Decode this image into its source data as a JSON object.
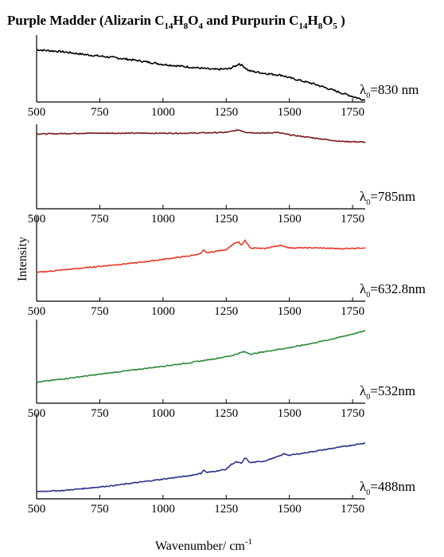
{
  "title_parts": {
    "main": "Purple Madder (Alizarin C",
    "s1": "14",
    "t1": "H",
    "s2": "8",
    "t2": "O",
    "s3": "4",
    "mid": " and Purpurin C",
    "s4": "14",
    "t4": "H",
    "s5": "8",
    "t5": "O",
    "s6": "5",
    "end": " )"
  },
  "chart_data": {
    "type": "line",
    "title": "Purple Madder (Alizarin C14H8O4 and Purpurin C14H8O5 )",
    "xlabel": "Wavenumber/ cm-1",
    "ylabel": "Intensity",
    "xlim": [
      500,
      1800
    ],
    "xticks": [
      "500",
      "750",
      "1000",
      "1250",
      "1500",
      "1750"
    ],
    "grid": false,
    "panels": [
      {
        "label_prefix": "λ",
        "label_sub": "0",
        "label_value": "=830 nm",
        "color": "#000000",
        "ylim": [
          0,
          1
        ],
        "points": [
          [
            500,
            0.82
          ],
          [
            600,
            0.79
          ],
          [
            700,
            0.74
          ],
          [
            800,
            0.7
          ],
          [
            900,
            0.65
          ],
          [
            1000,
            0.59
          ],
          [
            1100,
            0.55
          ],
          [
            1200,
            0.51
          ],
          [
            1260,
            0.52
          ],
          [
            1290,
            0.57
          ],
          [
            1300,
            0.6
          ],
          [
            1315,
            0.57
          ],
          [
            1340,
            0.49
          ],
          [
            1400,
            0.45
          ],
          [
            1470,
            0.42
          ],
          [
            1500,
            0.38
          ],
          [
            1600,
            0.28
          ],
          [
            1700,
            0.15
          ],
          [
            1780,
            0.05
          ],
          [
            1800,
            0.03
          ]
        ]
      },
      {
        "label_prefix": "λ",
        "label_sub": "0",
        "label_value": "=785nm",
        "color": "#7b1a1e",
        "ylim": [
          0,
          1
        ],
        "points": [
          [
            500,
            0.92
          ],
          [
            700,
            0.93
          ],
          [
            900,
            0.93
          ],
          [
            1100,
            0.93
          ],
          [
            1250,
            0.94
          ],
          [
            1300,
            0.97
          ],
          [
            1330,
            0.94
          ],
          [
            1400,
            0.93
          ],
          [
            1450,
            0.94
          ],
          [
            1500,
            0.91
          ],
          [
            1600,
            0.87
          ],
          [
            1700,
            0.83
          ],
          [
            1800,
            0.82
          ]
        ]
      },
      {
        "label_prefix": "λ",
        "label_sub": "0",
        "label_value": "=632.8nm",
        "color": "#e8392b",
        "ylim": [
          0,
          1
        ],
        "points": [
          [
            500,
            0.35
          ],
          [
            600,
            0.38
          ],
          [
            700,
            0.41
          ],
          [
            800,
            0.44
          ],
          [
            900,
            0.47
          ],
          [
            1000,
            0.51
          ],
          [
            1100,
            0.55
          ],
          [
            1150,
            0.58
          ],
          [
            1160,
            0.62
          ],
          [
            1175,
            0.59
          ],
          [
            1250,
            0.63
          ],
          [
            1280,
            0.7
          ],
          [
            1300,
            0.72
          ],
          [
            1310,
            0.68
          ],
          [
            1325,
            0.74
          ],
          [
            1345,
            0.65
          ],
          [
            1400,
            0.64
          ],
          [
            1460,
            0.68
          ],
          [
            1480,
            0.67
          ],
          [
            1500,
            0.65
          ],
          [
            1600,
            0.65
          ],
          [
            1700,
            0.64
          ],
          [
            1800,
            0.65
          ]
        ]
      },
      {
        "label_prefix": "λ",
        "label_sub": "0",
        "label_value": "=532nm",
        "color": "#2e8b3e",
        "ylim": [
          0,
          1
        ],
        "points": [
          [
            500,
            0.26
          ],
          [
            600,
            0.3
          ],
          [
            700,
            0.34
          ],
          [
            800,
            0.38
          ],
          [
            900,
            0.42
          ],
          [
            1000,
            0.46
          ],
          [
            1100,
            0.5
          ],
          [
            1200,
            0.55
          ],
          [
            1270,
            0.59
          ],
          [
            1320,
            0.64
          ],
          [
            1350,
            0.61
          ],
          [
            1400,
            0.64
          ],
          [
            1500,
            0.69
          ],
          [
            1600,
            0.75
          ],
          [
            1700,
            0.82
          ],
          [
            1800,
            0.9
          ]
        ]
      },
      {
        "label_prefix": "λ",
        "label_sub": "0",
        "label_value": "=488nm",
        "color": "#2e3289",
        "ylim": [
          0,
          1
        ],
        "points": [
          [
            500,
            0.09
          ],
          [
            600,
            0.1
          ],
          [
            700,
            0.13
          ],
          [
            800,
            0.16
          ],
          [
            900,
            0.2
          ],
          [
            1000,
            0.24
          ],
          [
            1100,
            0.28
          ],
          [
            1150,
            0.31
          ],
          [
            1160,
            0.35
          ],
          [
            1175,
            0.32
          ],
          [
            1250,
            0.36
          ],
          [
            1270,
            0.42
          ],
          [
            1290,
            0.45
          ],
          [
            1310,
            0.43
          ],
          [
            1325,
            0.5
          ],
          [
            1345,
            0.44
          ],
          [
            1400,
            0.46
          ],
          [
            1460,
            0.52
          ],
          [
            1480,
            0.55
          ],
          [
            1500,
            0.53
          ],
          [
            1600,
            0.58
          ],
          [
            1700,
            0.63
          ],
          [
            1800,
            0.68
          ]
        ]
      }
    ]
  }
}
